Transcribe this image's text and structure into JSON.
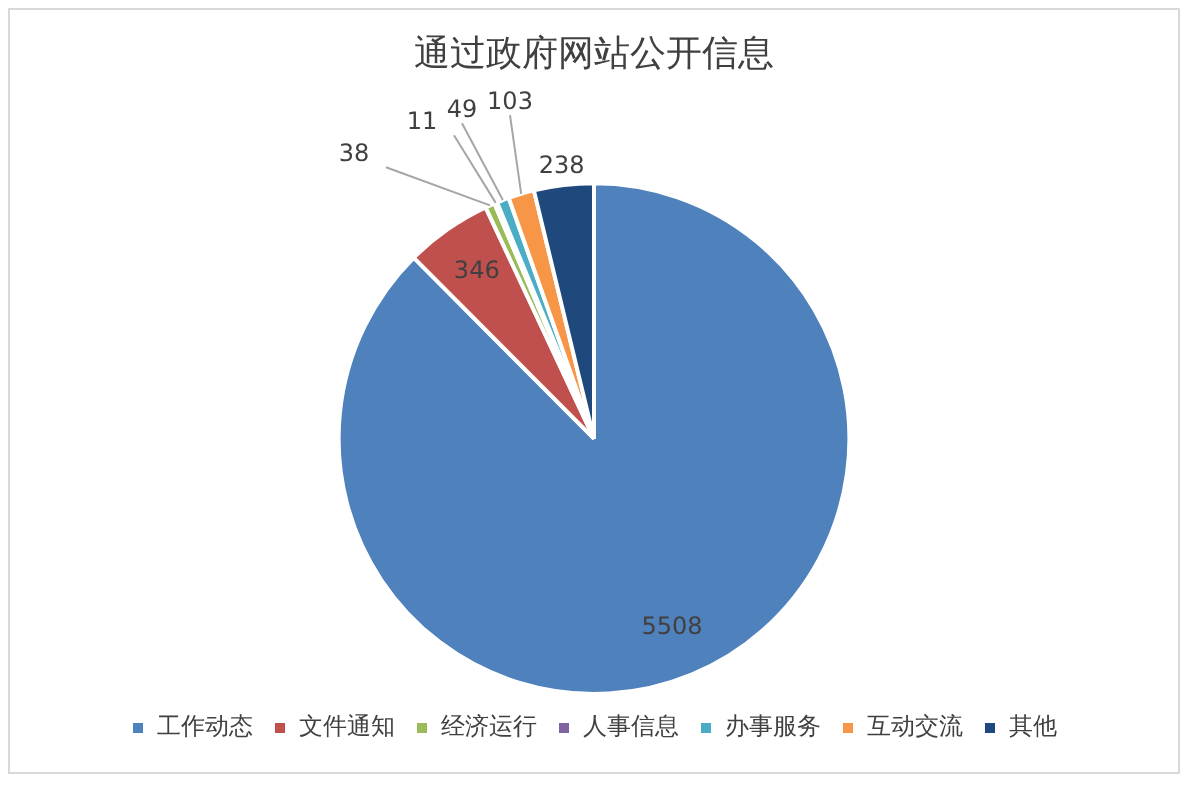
{
  "chart_data": {
    "type": "pie",
    "title": "通过政府网站公开信息",
    "categories": [
      "工作动态",
      "文件通知",
      "经济运行",
      "人事信息",
      "办事服务",
      "互动交流",
      "其他"
    ],
    "values": [
      5508,
      346,
      38,
      11,
      49,
      103,
      238
    ],
    "colors": [
      "#4f81bd",
      "#c0504d",
      "#9bbb59",
      "#8064a2",
      "#4bacc6",
      "#f79646",
      "#1f497d"
    ],
    "data_labels": true,
    "legend": "bottom"
  }
}
